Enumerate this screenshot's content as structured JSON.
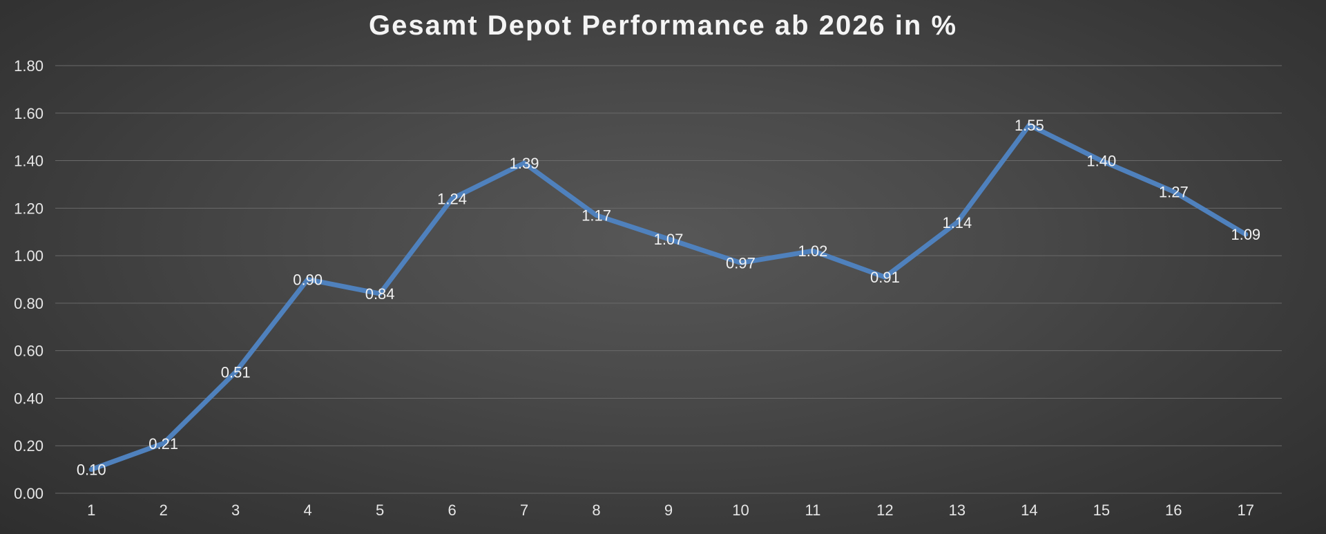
{
  "chart_data": {
    "type": "line",
    "title": "Gesamt Depot Performance ab 2026 in %",
    "xlabel": "",
    "ylabel": "",
    "categories": [
      "1",
      "2",
      "3",
      "4",
      "5",
      "6",
      "7",
      "8",
      "9",
      "10",
      "11",
      "12",
      "13",
      "14",
      "15",
      "16",
      "17"
    ],
    "series": [
      {
        "values": [
          0.1,
          0.21,
          0.51,
          0.9,
          0.84,
          1.24,
          1.39,
          1.17,
          1.07,
          0.97,
          1.02,
          0.91,
          1.14,
          1.55,
          1.4,
          1.27,
          1.09
        ],
        "labels": [
          "0.10",
          "0.21",
          "0.51",
          "0.90",
          "0.84",
          "1.24",
          "1.39",
          "1.17",
          "1.07",
          "0.97",
          "1.02",
          "0.91",
          "1.14",
          "1.55",
          "1.40",
          "1.27",
          "1.09"
        ],
        "color": "#4f81bd"
      }
    ],
    "ylim": [
      0,
      1.8
    ],
    "y_ticks": [
      "0.00",
      "0.20",
      "0.40",
      "0.60",
      "0.80",
      "1.00",
      "1.20",
      "1.40",
      "1.60",
      "1.80"
    ],
    "grid": true,
    "legend": "none"
  }
}
